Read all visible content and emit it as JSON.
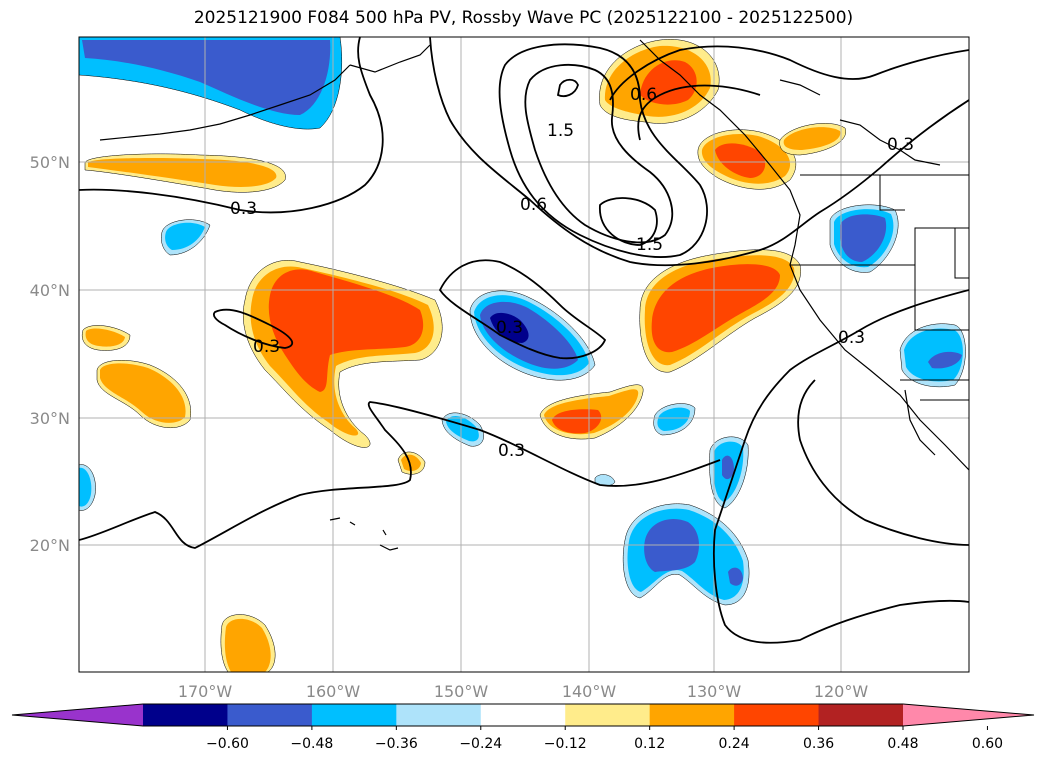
{
  "title": "2025121900 F084 500 hPa PV, Rossby Wave PC (2025122100 - 2025122500)",
  "map": {
    "lat_labels": [
      "50°N",
      "40°N",
      "30°N",
      "20°N"
    ],
    "lon_labels": [
      "170°W",
      "160°W",
      "150°W",
      "140°W",
      "130°W",
      "120°W"
    ],
    "contour_labels": [
      "1.5",
      "1.5",
      "0.6",
      "0.3",
      "0.3",
      "0.3",
      "0.3",
      "0.3",
      "0.3",
      "0.6"
    ],
    "colors": {
      "neg_0_60": "#9933cc",
      "neg_0_48": "#00008b",
      "neg_0_36": "#3a5bcd",
      "neg_0_24": "#00bfff",
      "neg_0_12": "#aee3fa",
      "zero": "#ffffff",
      "pos_0_12": "#ffec8b",
      "pos_0_24": "#ffa500",
      "pos_0_36": "#ff4500",
      "pos_0_48": "#b22222",
      "pos_0_60": "#ff88aa"
    }
  },
  "colorbar": {
    "ticks": [
      "−0.60",
      "−0.48",
      "−0.36",
      "−0.24",
      "−0.12",
      "0.12",
      "0.24",
      "0.36",
      "0.48",
      "0.60"
    ],
    "colors": [
      "#9933cc",
      "#00008b",
      "#3a5bcd",
      "#00bfff",
      "#aee3fa",
      "#ffffff",
      "#ffec8b",
      "#ffa500",
      "#ff4500",
      "#b22222",
      "#ff88aa"
    ]
  }
}
